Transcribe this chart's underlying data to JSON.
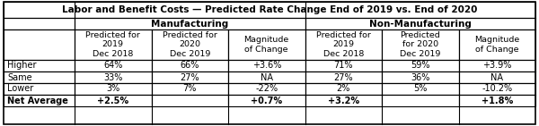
{
  "title": "Labor and Benefit Costs — Predicted Rate Change End of 2019 vs. End of 2020",
  "col_groups": [
    "Manufacturing",
    "Non-Manufacturing"
  ],
  "col_headers": [
    "Predicted for\n2019\nDec 2018",
    "Predicted for\n2020\nDec 2019",
    "Magnitude\nof Change",
    "Predicted for\n2019\nDec 2018",
    "Predicted\nfor 2020\nDec 2019",
    "Magnitude\nof Change"
  ],
  "row_labels": [
    "Higher",
    "Same",
    "Lower",
    "Net Average"
  ],
  "data": [
    [
      "64%",
      "66%",
      "+3.6%",
      "71%",
      "59%",
      "+3.9%"
    ],
    [
      "33%",
      "27%",
      "NA",
      "27%",
      "36%",
      "NA"
    ],
    [
      "3%",
      "7%",
      "-22%",
      "2%",
      "5%",
      "-10.2%"
    ],
    [
      "+2.5%",
      "",
      "+0.7%",
      "+3.2%",
      "",
      "+1.8%"
    ]
  ],
  "bg_color": "#ffffff",
  "title_fontsize": 7.5,
  "group_fontsize": 7.5,
  "header_fontsize": 6.8,
  "cell_fontsize": 7.0,
  "row_label_bold": [
    false,
    false,
    false,
    true
  ],
  "lw": 0.8
}
